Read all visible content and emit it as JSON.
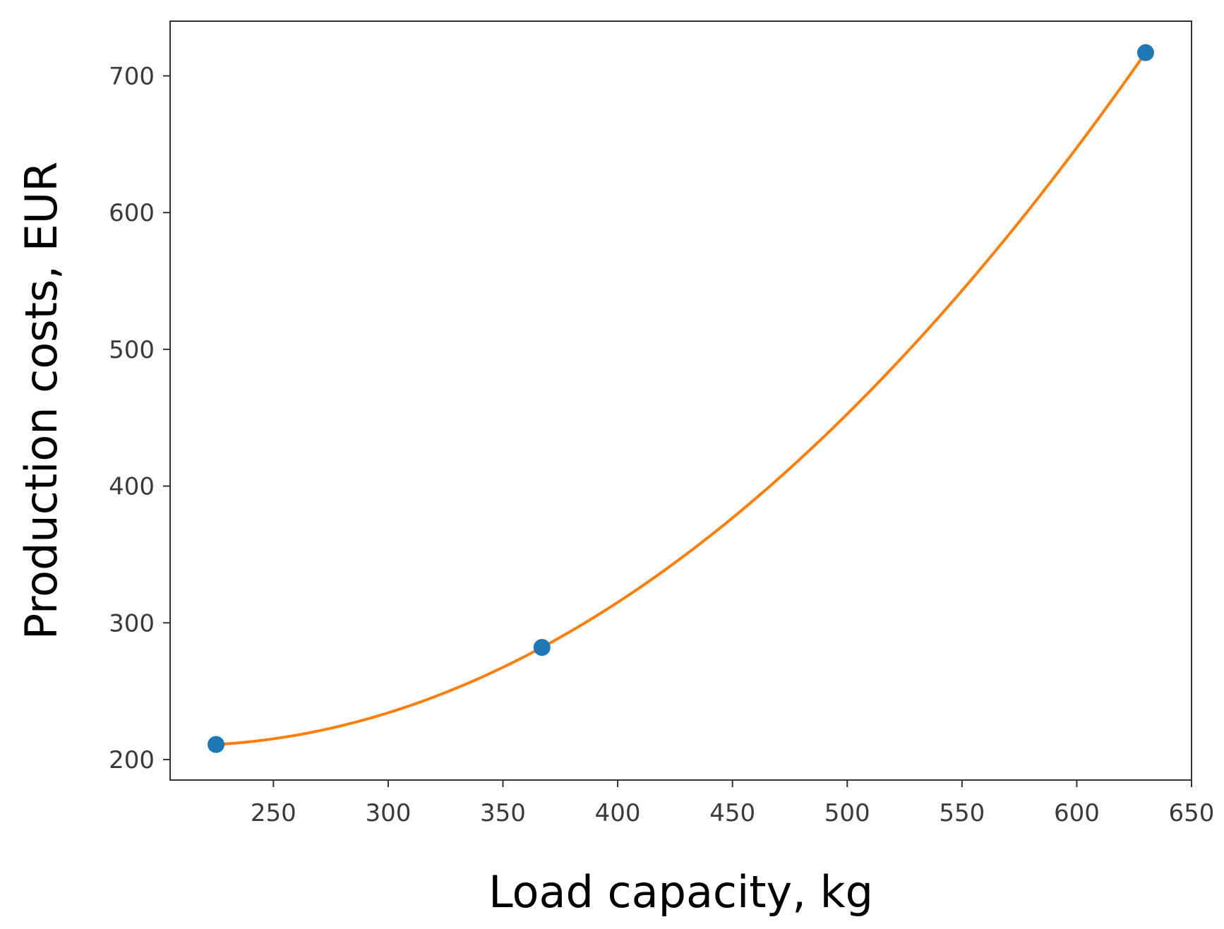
{
  "chart_data": {
    "type": "scatter",
    "xlabel": "Load capacity, kg",
    "ylabel": "Production costs, EUR",
    "xlim": [
      205,
      650
    ],
    "ylim": [
      185,
      740
    ],
    "x_ticks": [
      250,
      300,
      350,
      400,
      450,
      500,
      550,
      600,
      650
    ],
    "y_ticks": [
      200,
      300,
      400,
      500,
      600,
      700
    ],
    "grid": false,
    "legend": "none",
    "points": {
      "x": [
        225,
        367,
        630
      ],
      "y": [
        211,
        282,
        717
      ],
      "color": "#1f77b4"
    },
    "fit_curve": {
      "type": "quadratic",
      "x_range": [
        225,
        630
      ],
      "color": "#ff7f0e"
    }
  }
}
